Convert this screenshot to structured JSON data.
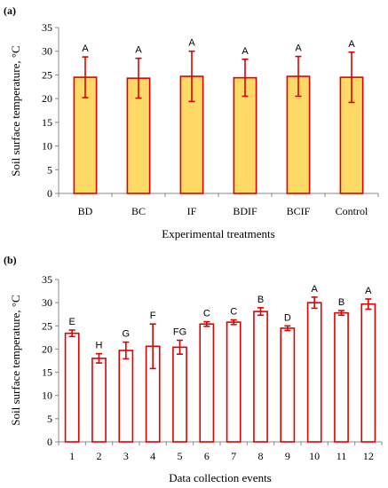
{
  "chart_data": [
    {
      "panel_label": "(a)",
      "type": "bar",
      "xlabel": "Experimental treatments",
      "ylabel": "Soil surface temperature, °C",
      "ylim": [
        0,
        35
      ],
      "yticks": [
        "0",
        "5",
        "10",
        "15",
        "20",
        "25",
        "30",
        "35"
      ],
      "categories": [
        "BD",
        "BC",
        "IF",
        "BDIF",
        "BCIF",
        "Control"
      ],
      "values": [
        24.5,
        24.3,
        24.7,
        24.4,
        24.7,
        24.5
      ],
      "error": [
        4.3,
        4.2,
        5.3,
        3.9,
        4.2,
        5.3
      ],
      "letters": [
        "A",
        "A",
        "A",
        "A",
        "A",
        "A"
      ],
      "bar_fill": "#FFD966",
      "bar_stroke": "#E00000",
      "error_color": "#E00000"
    },
    {
      "panel_label": "(b)",
      "type": "bar",
      "xlabel": "Data collection events",
      "ylabel": "Soil surface temperature, °C",
      "ylim": [
        0,
        35
      ],
      "yticks": [
        "0",
        "5",
        "10",
        "15",
        "20",
        "25",
        "30",
        "35"
      ],
      "categories": [
        "1",
        "2",
        "3",
        "4",
        "5",
        "6",
        "7",
        "8",
        "9",
        "10",
        "11",
        "12"
      ],
      "values": [
        23.4,
        18.0,
        19.7,
        20.6,
        20.4,
        25.4,
        25.8,
        28.1,
        24.5,
        30.0,
        27.8,
        29.7
      ],
      "error": [
        0.7,
        1.0,
        1.8,
        4.8,
        1.5,
        0.5,
        0.5,
        0.8,
        0.5,
        1.2,
        0.5,
        1.1
      ],
      "letters": [
        "E",
        "H",
        "G",
        "F",
        "FG",
        "C",
        "C",
        "B",
        "D",
        "A",
        "B",
        "A"
      ],
      "bar_fill": "#FFFFFF",
      "bar_stroke": "#E00000",
      "error_color": "#E00000"
    }
  ]
}
